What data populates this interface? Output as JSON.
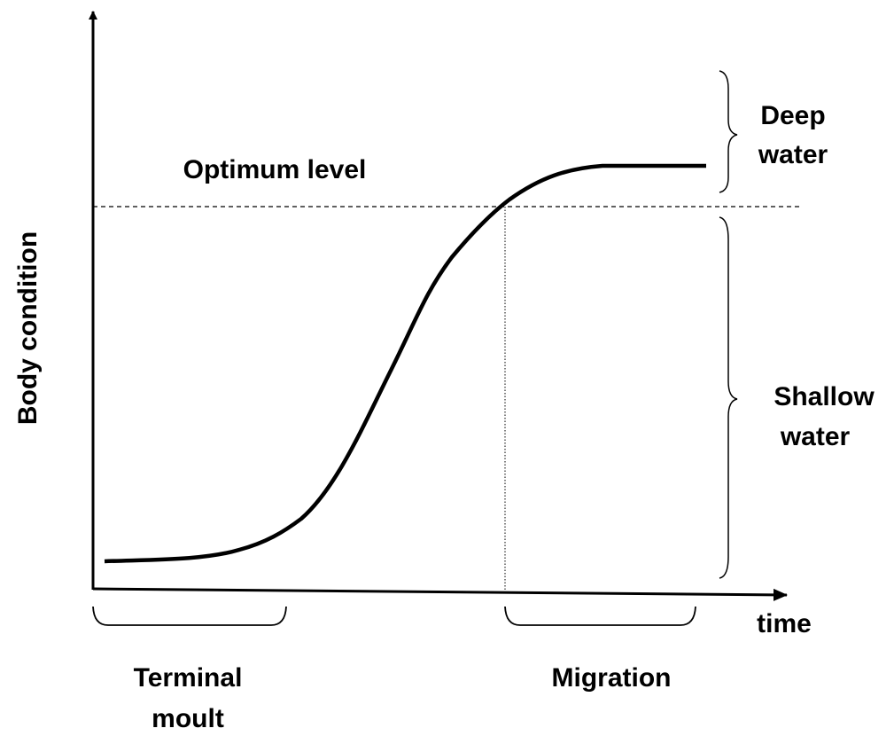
{
  "axes": {
    "y_label": "Body condition",
    "x_label": "time"
  },
  "threshold": {
    "label": "Optimum level"
  },
  "zones": [
    {
      "lines": [
        "Deep",
        "water"
      ]
    },
    {
      "lines": [
        "Shallow",
        "water"
      ]
    }
  ],
  "phases": [
    {
      "lines": [
        "Terminal",
        "moult"
      ]
    },
    {
      "lines": [
        "Migration"
      ]
    }
  ]
}
